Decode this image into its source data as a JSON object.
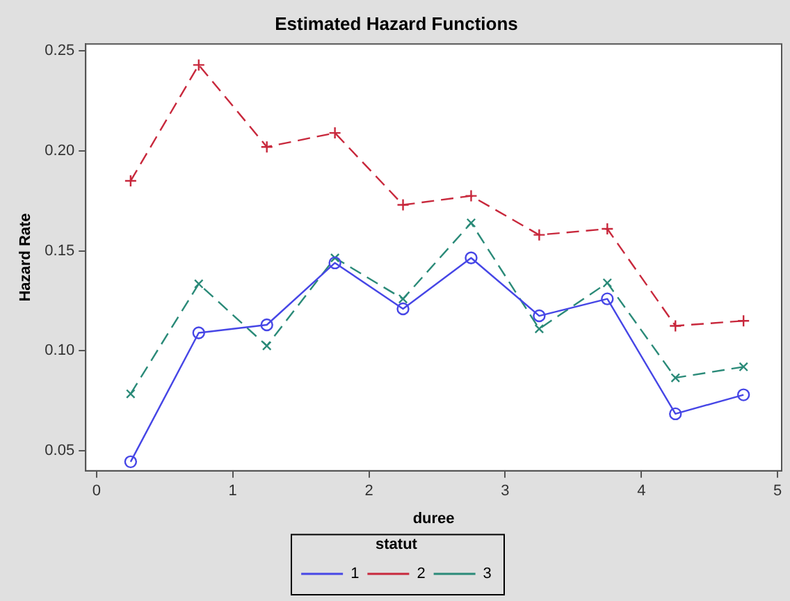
{
  "chart_data": {
    "type": "line",
    "title": "Estimated Hazard Functions",
    "xlabel": "duree",
    "ylabel": "Hazard Rate",
    "legend_title": "statut",
    "x": [
      0.25,
      0.75,
      1.25,
      1.75,
      2.25,
      2.75,
      3.25,
      3.75,
      4.25,
      4.75
    ],
    "series": [
      {
        "name": "1",
        "color": "#4646e6",
        "marker": "circle",
        "line_style": "solid",
        "values": [
          0.0445,
          0.109,
          0.113,
          0.144,
          0.121,
          0.1465,
          0.1175,
          0.126,
          0.0685,
          0.078
        ]
      },
      {
        "name": "2",
        "color": "#c8283c",
        "marker": "cross",
        "line_style": "dashed",
        "values": [
          0.185,
          0.243,
          0.202,
          0.209,
          0.173,
          0.1775,
          0.158,
          0.161,
          0.1125,
          0.115
        ]
      },
      {
        "name": "3",
        "color": "#2a8a78",
        "marker": "x",
        "line_style": "dashed",
        "values": [
          0.0785,
          0.1335,
          0.1025,
          0.1465,
          0.126,
          0.164,
          0.111,
          0.134,
          0.0865,
          0.092
        ]
      }
    ],
    "xlim": [
      -0.08,
      5.03
    ],
    "xticks": [
      0,
      1,
      2,
      3,
      4,
      5
    ],
    "ylim": [
      0.04,
      0.2535
    ],
    "yticks": [
      {
        "value": 0.05,
        "label": "0.05"
      },
      {
        "value": 0.1,
        "label": "0.10"
      },
      {
        "value": 0.15,
        "label": "0.15"
      },
      {
        "value": 0.2,
        "label": "0.20"
      },
      {
        "value": 0.25,
        "label": "0.25"
      }
    ],
    "grid": false,
    "legend": "bottom"
  }
}
